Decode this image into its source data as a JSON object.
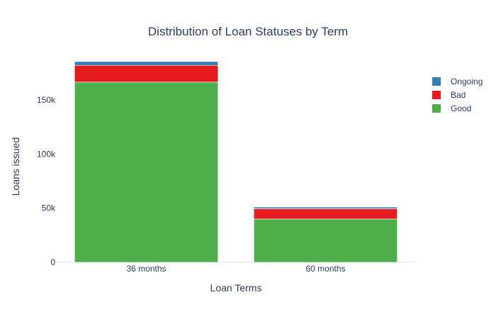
{
  "chart_data": {
    "type": "bar",
    "stacked": true,
    "title": "Distribution of Loan Statuses by Term",
    "xlabel": "Loan Terms",
    "ylabel": "Loans issued",
    "categories": [
      "36 months",
      "60 months"
    ],
    "series": [
      {
        "name": "Good",
        "color": "#4daf4a",
        "values": [
          166500,
          40000
        ]
      },
      {
        "name": "Bad",
        "color": "#e41a1c",
        "values": [
          15500,
          9500
        ]
      },
      {
        "name": "Ongoing",
        "color": "#377eb8",
        "values": [
          3500,
          1500
        ]
      }
    ],
    "ylim": [
      0,
      190000
    ],
    "yticks": [
      0,
      50000,
      100000,
      150000
    ],
    "ytick_labels": [
      "0",
      "50k",
      "100k",
      "150k"
    ],
    "grid": false,
    "legend": {
      "placement": "right",
      "order": [
        "Ongoing",
        "Bad",
        "Good"
      ]
    }
  }
}
